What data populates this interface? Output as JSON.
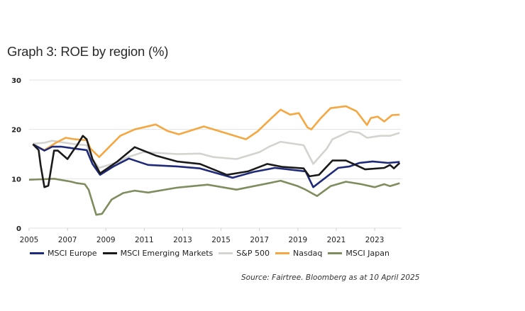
{
  "chart_data": {
    "type": "line",
    "title": "Graph 3: ROE by region (%)",
    "xlabel": "",
    "ylabel": "",
    "xlim": [
      2005,
      2024.4
    ],
    "ylim": [
      0,
      30
    ],
    "yticks": [
      0,
      10,
      20,
      30
    ],
    "xticks": [
      2005,
      2007,
      2009,
      2011,
      2013,
      2015,
      2017,
      2019,
      2021,
      2023
    ],
    "grid": "horizontal",
    "legend_position": "bottom",
    "source": "Source: Fairtree. Bloomberg as at 10 April 2025",
    "series": [
      {
        "name": "MSCI Europe",
        "color": "#1f2a7a",
        "points": [
          [
            2005.2,
            17.0
          ],
          [
            2005.8,
            15.7
          ],
          [
            2006.2,
            16.5
          ],
          [
            2006.7,
            16.5
          ],
          [
            2007.4,
            16.1
          ],
          [
            2008.0,
            15.8
          ],
          [
            2008.3,
            13.0
          ],
          [
            2008.7,
            10.8
          ],
          [
            2009.4,
            12.5
          ],
          [
            2010.2,
            14.1
          ],
          [
            2011.2,
            12.8
          ],
          [
            2012.7,
            12.5
          ],
          [
            2013.9,
            12.1
          ],
          [
            2015.6,
            10.2
          ],
          [
            2016.7,
            11.4
          ],
          [
            2017.8,
            12.2
          ],
          [
            2019.4,
            11.5
          ],
          [
            2019.8,
            8.3
          ],
          [
            2020.5,
            10.4
          ],
          [
            2021.1,
            12.2
          ],
          [
            2021.7,
            12.5
          ],
          [
            2022.2,
            13.2
          ],
          [
            2022.9,
            13.5
          ],
          [
            2023.7,
            13.2
          ],
          [
            2024.3,
            13.4
          ]
        ]
      },
      {
        "name": "MSCI Emerging Markets",
        "color": "#1a1a1a",
        "points": [
          [
            2005.2,
            17.0
          ],
          [
            2005.5,
            15.8
          ],
          [
            2005.6,
            12.8
          ],
          [
            2005.8,
            8.3
          ],
          [
            2006.0,
            8.6
          ],
          [
            2006.3,
            15.7
          ],
          [
            2006.5,
            15.7
          ],
          [
            2007.0,
            14.0
          ],
          [
            2007.3,
            15.7
          ],
          [
            2007.5,
            16.8
          ],
          [
            2007.8,
            18.7
          ],
          [
            2008.0,
            18.0
          ],
          [
            2008.3,
            14.0
          ],
          [
            2008.7,
            11.1
          ],
          [
            2009.6,
            13.5
          ],
          [
            2010.5,
            16.4
          ],
          [
            2011.6,
            14.7
          ],
          [
            2012.7,
            13.5
          ],
          [
            2013.9,
            13.0
          ],
          [
            2015.3,
            10.8
          ],
          [
            2016.4,
            11.5
          ],
          [
            2017.4,
            13.0
          ],
          [
            2018.2,
            12.4
          ],
          [
            2019.3,
            12.1
          ],
          [
            2019.6,
            10.5
          ],
          [
            2020.1,
            10.8
          ],
          [
            2020.8,
            13.7
          ],
          [
            2021.5,
            13.7
          ],
          [
            2021.9,
            13.0
          ],
          [
            2022.5,
            11.9
          ],
          [
            2023.5,
            12.2
          ],
          [
            2023.8,
            12.8
          ],
          [
            2024.0,
            12.1
          ],
          [
            2024.3,
            13.2
          ]
        ]
      },
      {
        "name": "S&P 500",
        "color": "#d3d3cf",
        "points": [
          [
            2005.2,
            17.1
          ],
          [
            2005.8,
            17.3
          ],
          [
            2006.2,
            17.7
          ],
          [
            2007.4,
            17.0
          ],
          [
            2008.0,
            16.8
          ],
          [
            2008.3,
            14.0
          ],
          [
            2008.65,
            12.2
          ],
          [
            2009.75,
            13.5
          ],
          [
            2010.0,
            14.2
          ],
          [
            2010.95,
            15.4
          ],
          [
            2012.7,
            15.0
          ],
          [
            2013.9,
            15.1
          ],
          [
            2014.6,
            14.4
          ],
          [
            2015.8,
            14.0
          ],
          [
            2017.0,
            15.4
          ],
          [
            2017.5,
            16.5
          ],
          [
            2018.1,
            17.5
          ],
          [
            2019.3,
            16.8
          ],
          [
            2019.8,
            13.0
          ],
          [
            2020.5,
            16.1
          ],
          [
            2020.8,
            18.0
          ],
          [
            2021.7,
            19.6
          ],
          [
            2022.2,
            19.3
          ],
          [
            2022.6,
            18.3
          ],
          [
            2023.3,
            18.7
          ],
          [
            2023.8,
            18.7
          ],
          [
            2024.3,
            19.3
          ]
        ]
      },
      {
        "name": "Nasdaq",
        "color": "#f5a742",
        "points": [
          [
            2005.2,
            17.0
          ],
          [
            2005.8,
            15.8
          ],
          [
            2006.4,
            17.3
          ],
          [
            2006.9,
            18.3
          ],
          [
            2007.4,
            18.0
          ],
          [
            2008.0,
            17.8
          ],
          [
            2008.2,
            16.1
          ],
          [
            2008.65,
            14.4
          ],
          [
            2009.75,
            18.7
          ],
          [
            2010.5,
            20.0
          ],
          [
            2011.6,
            21.0
          ],
          [
            2012.2,
            19.7
          ],
          [
            2012.8,
            19.0
          ],
          [
            2014.1,
            20.6
          ],
          [
            2015.2,
            19.3
          ],
          [
            2016.3,
            18.0
          ],
          [
            2016.9,
            19.6
          ],
          [
            2017.6,
            22.2
          ],
          [
            2018.1,
            24.0
          ],
          [
            2018.6,
            23.0
          ],
          [
            2019.05,
            23.3
          ],
          [
            2019.5,
            20.4
          ],
          [
            2019.7,
            20.0
          ],
          [
            2020.2,
            22.3
          ],
          [
            2020.7,
            24.3
          ],
          [
            2021.5,
            24.7
          ],
          [
            2022.05,
            23.7
          ],
          [
            2022.6,
            20.9
          ],
          [
            2022.8,
            22.3
          ],
          [
            2023.15,
            22.6
          ],
          [
            2023.5,
            21.6
          ],
          [
            2023.9,
            22.9
          ],
          [
            2024.3,
            23.0
          ]
        ]
      },
      {
        "name": "MSCI Japan",
        "color": "#7f8c5e",
        "points": [
          [
            2005.0,
            9.8
          ],
          [
            2005.7,
            9.9
          ],
          [
            2006.3,
            10.0
          ],
          [
            2007.2,
            9.4
          ],
          [
            2007.5,
            9.1
          ],
          [
            2007.9,
            8.9
          ],
          [
            2008.1,
            7.8
          ],
          [
            2008.5,
            2.7
          ],
          [
            2008.8,
            2.9
          ],
          [
            2009.3,
            5.8
          ],
          [
            2009.9,
            7.1
          ],
          [
            2010.5,
            7.6
          ],
          [
            2011.2,
            7.2
          ],
          [
            2012.7,
            8.2
          ],
          [
            2014.3,
            8.8
          ],
          [
            2015.8,
            7.8
          ],
          [
            2017.6,
            9.2
          ],
          [
            2018.1,
            9.6
          ],
          [
            2019.0,
            8.5
          ],
          [
            2019.4,
            7.8
          ],
          [
            2020.0,
            6.5
          ],
          [
            2020.7,
            8.5
          ],
          [
            2021.5,
            9.4
          ],
          [
            2022.3,
            8.9
          ],
          [
            2023.0,
            8.3
          ],
          [
            2023.5,
            8.9
          ],
          [
            2023.8,
            8.5
          ],
          [
            2024.3,
            9.1
          ]
        ]
      }
    ]
  }
}
